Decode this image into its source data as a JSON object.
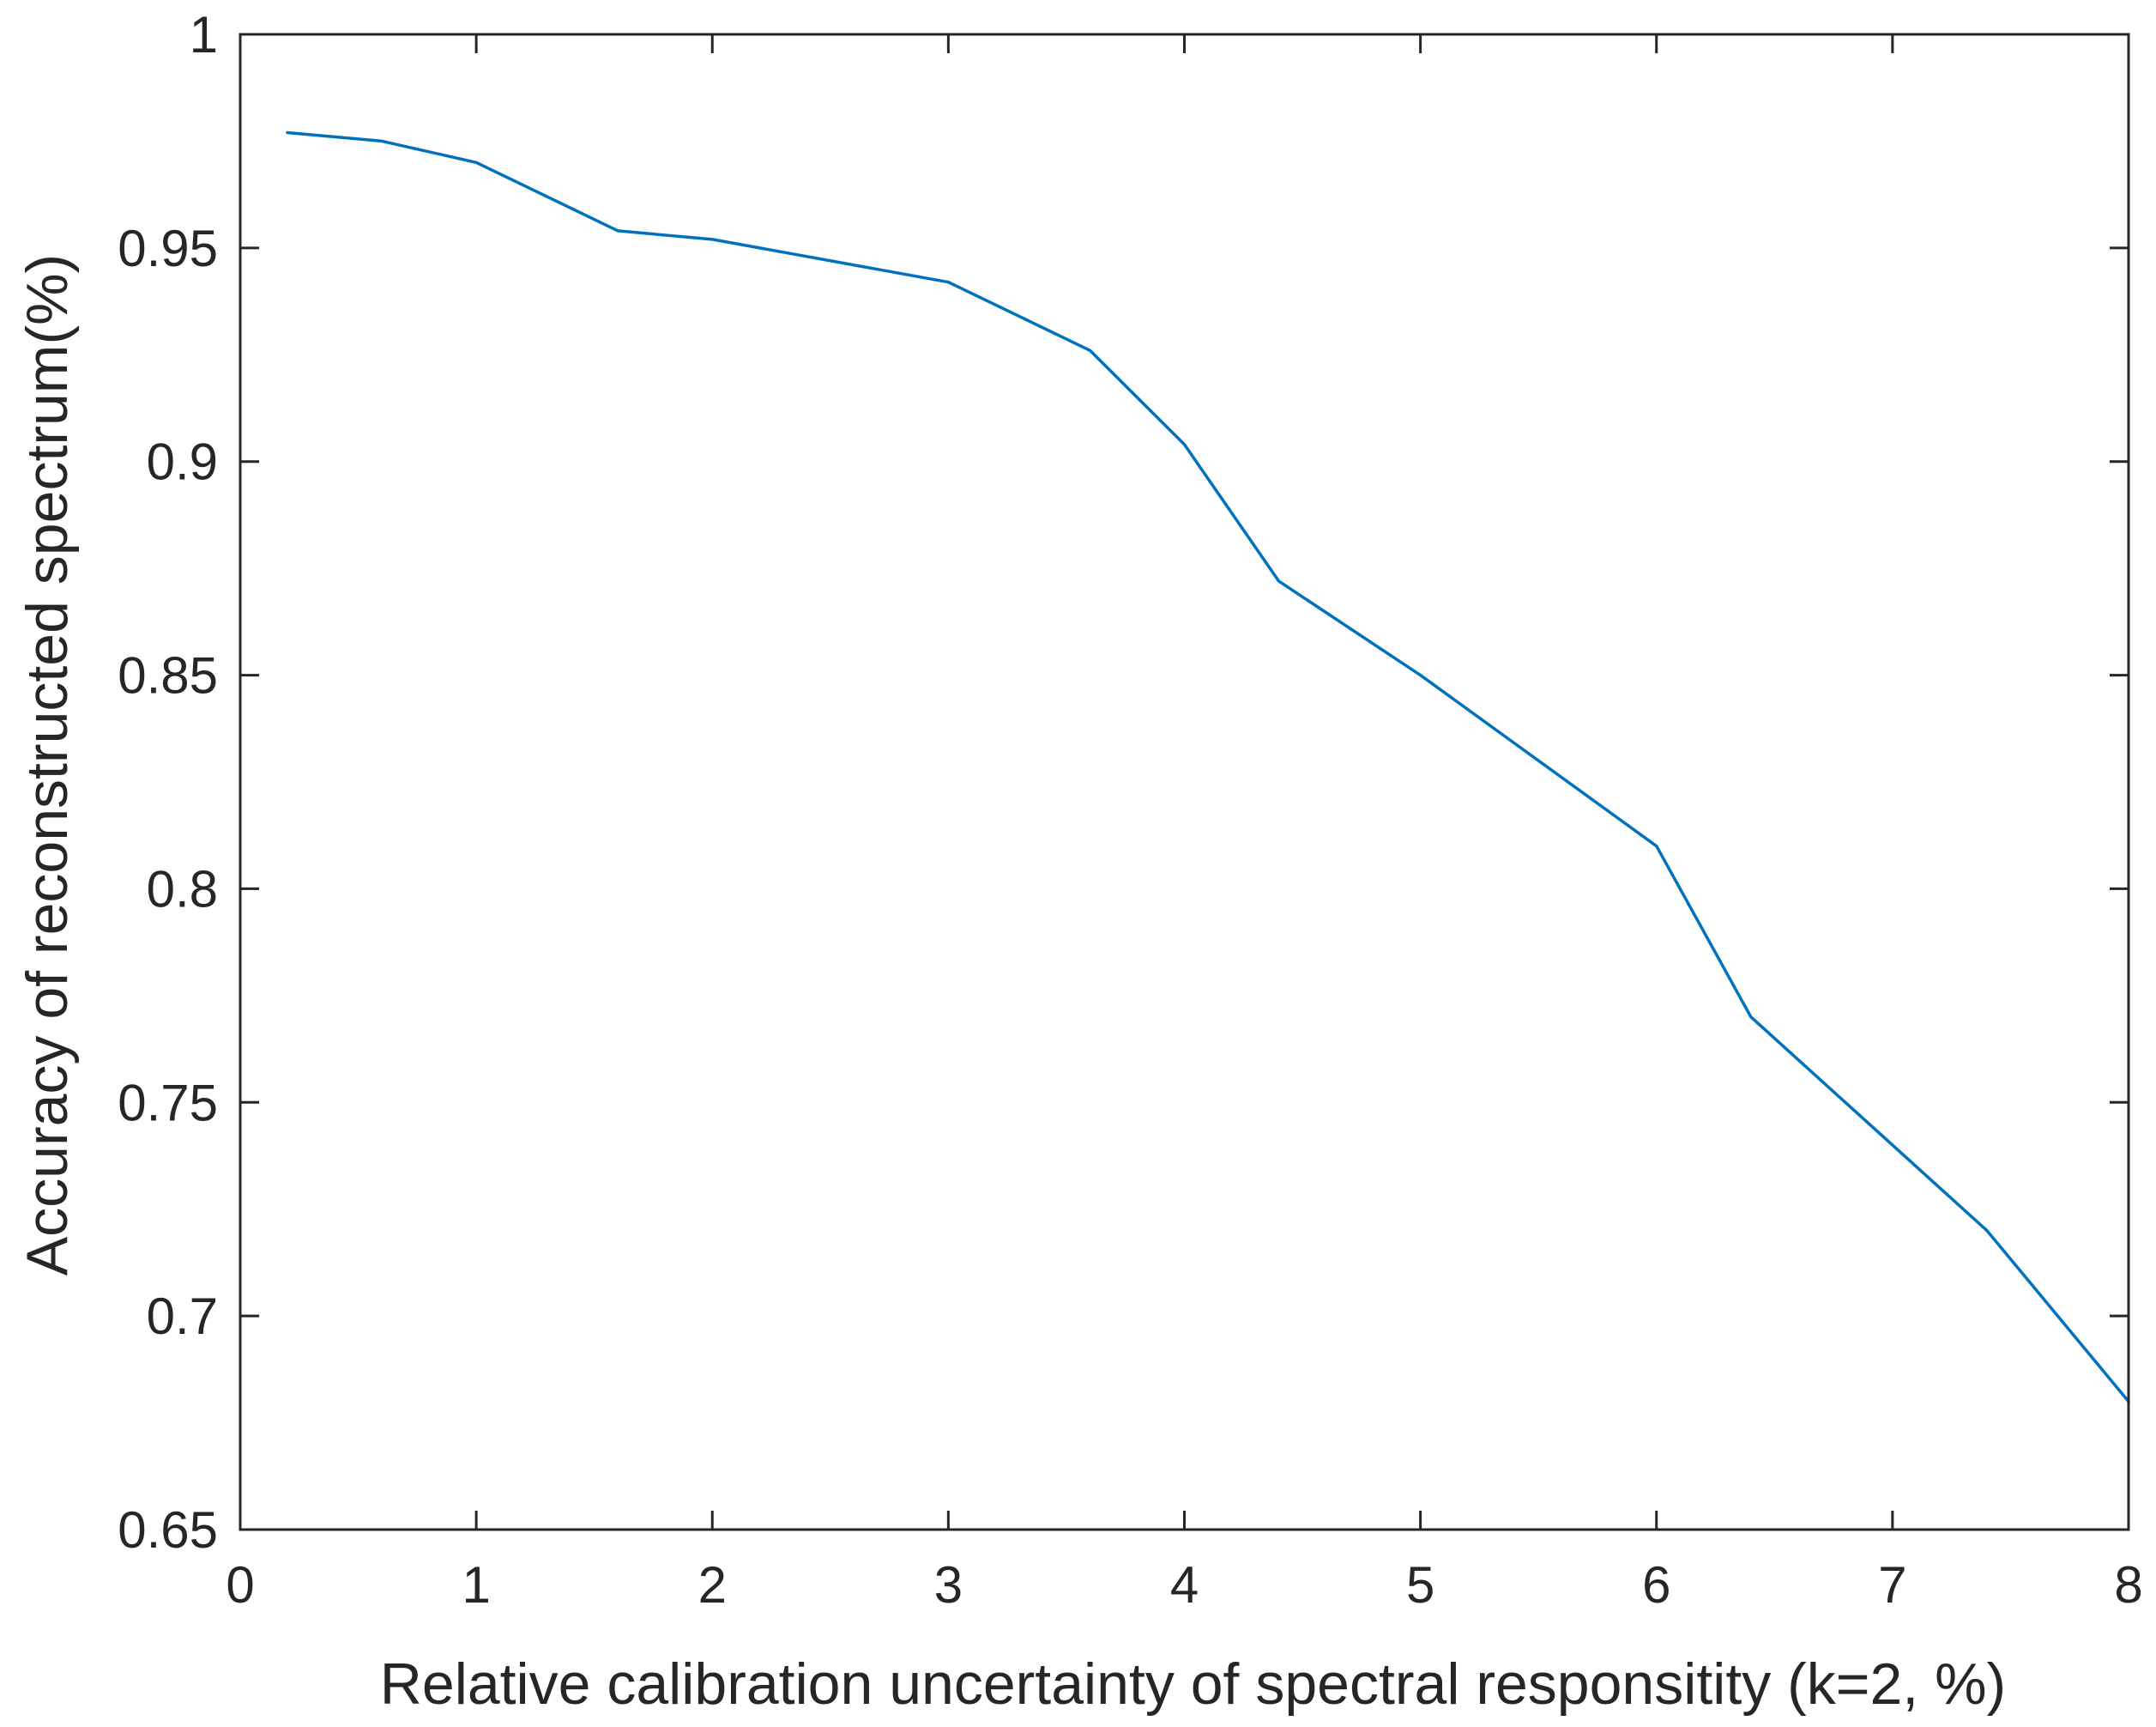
{
  "chart_data": {
    "type": "line",
    "title": "",
    "xlabel": "Relative calibration uncertainty of spectral responsitity (k=2, %)",
    "ylabel": "Accuracy of reconstructed spectrum(%)",
    "xlim": [
      0,
      8
    ],
    "ylim": [
      0.65,
      1
    ],
    "x_ticks": [
      0,
      1,
      2,
      3,
      4,
      5,
      6,
      7,
      8
    ],
    "x_tick_labels": [
      "0",
      "1",
      "2",
      "3",
      "4",
      "5",
      "6",
      "7",
      "8"
    ],
    "y_ticks": [
      0.65,
      0.7,
      0.75,
      0.8,
      0.85,
      0.9,
      0.95,
      1
    ],
    "y_tick_labels": [
      "0.65",
      "0.7",
      "0.75",
      "0.8",
      "0.85",
      "0.9",
      "0.95",
      "1"
    ],
    "grid": false,
    "series": [
      {
        "color": "#0072BD",
        "x": [
          0.2,
          0.6,
          1.0,
          1.6,
          2.0,
          3.0,
          3.6,
          4.0,
          4.4,
          5.0,
          6.0,
          6.4,
          7.0,
          7.4,
          8.0
        ],
        "y": [
          0.977,
          0.975,
          0.97,
          0.954,
          0.952,
          0.942,
          0.926,
          0.904,
          0.872,
          0.85,
          0.81,
          0.77,
          0.74,
          0.72,
          0.68
        ]
      }
    ]
  }
}
